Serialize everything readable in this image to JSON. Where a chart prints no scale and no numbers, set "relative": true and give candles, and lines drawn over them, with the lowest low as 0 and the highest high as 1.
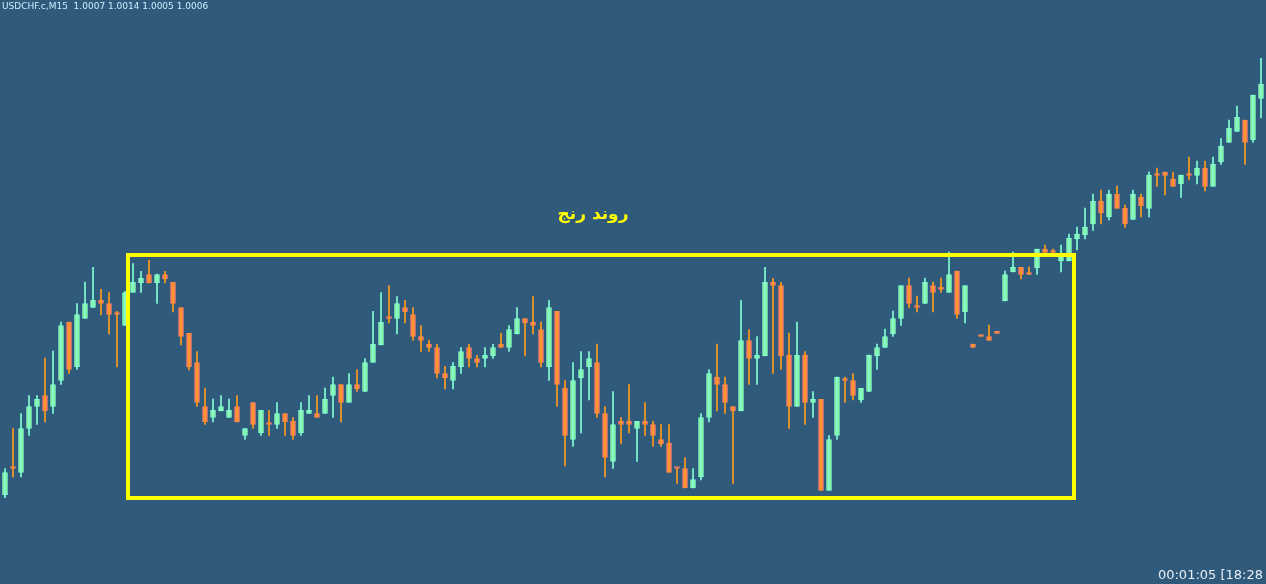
{
  "chart_data": {
    "type": "candlestick",
    "title": "USDCHF.c,M15  1.0007 1.0014 1.0005 1.0006",
    "relative": true,
    "annotations": [
      "روند رنج",
      "00:01:05 [18:28"
    ],
    "categories": [
      null,
      null,
      null,
      null,
      null,
      null,
      null,
      null,
      null,
      null,
      null,
      null,
      null,
      null,
      null,
      null,
      null,
      null,
      null,
      null,
      null,
      null,
      null,
      null,
      null,
      null,
      null,
      null,
      null,
      null,
      null,
      null,
      null,
      null,
      null,
      null,
      null,
      null,
      null,
      null,
      null,
      null,
      null,
      null,
      null,
      null,
      null,
      null,
      null,
      null,
      null,
      null,
      null,
      null,
      null,
      null,
      null,
      null,
      null,
      null,
      null,
      null,
      null,
      null,
      null,
      null,
      null,
      null,
      null,
      null,
      null,
      null,
      null,
      null,
      null,
      null,
      null,
      null,
      null,
      null,
      null,
      null,
      null,
      null,
      null,
      null,
      null,
      null,
      null,
      null,
      null,
      null,
      null,
      null,
      null,
      null,
      null,
      null,
      null,
      null,
      null,
      null,
      null,
      null,
      null,
      null,
      null,
      null,
      null,
      null,
      null,
      null,
      null,
      null,
      null,
      null,
      null,
      null,
      null,
      null,
      null,
      null,
      null,
      null,
      null,
      null,
      null,
      null,
      null,
      null,
      null,
      null,
      null,
      null,
      null,
      null,
      null,
      null,
      null,
      null,
      null,
      null,
      null,
      null,
      null,
      null,
      null,
      null,
      null,
      null,
      null,
      null,
      null,
      null,
      null,
      null,
      null,
      null
    ],
    "ohlc": [
      [
        0.007,
        0.067,
        0,
        0.058
      ],
      [
        0.067,
        0.158,
        0.048,
        0.067
      ],
      [
        0.058,
        0.192,
        0.048,
        0.158
      ],
      [
        0.158,
        0.233,
        0.142,
        0.208
      ],
      [
        0.208,
        0.233,
        0.167,
        0.224
      ],
      [
        0.233,
        0.318,
        0.173,
        0.198
      ],
      [
        0.208,
        0.334,
        0.192,
        0.258
      ],
      [
        0.267,
        0.4,
        0.258,
        0.392
      ],
      [
        0.4,
        0.4,
        0.283,
        0.292
      ],
      [
        0.298,
        0.442,
        0.292,
        0.417
      ],
      [
        0.408,
        0.491,
        0.408,
        0.442
      ],
      [
        0.433,
        0.524,
        0.433,
        0.449
      ],
      [
        0.449,
        0.474,
        0.416,
        0.442
      ],
      [
        0.442,
        0.467,
        0.373,
        0.417
      ],
      [
        0.417,
        0.424,
        0.298,
        0.417
      ],
      [
        0.392,
        0.469,
        0.392,
        0.467
      ],
      [
        0.467,
        0.533,
        0.467,
        0.49
      ],
      [
        0.489,
        0.515,
        0.467,
        0.499
      ],
      [
        0.508,
        0.541,
        0.489,
        0.489
      ],
      [
        0.489,
        0.509,
        0.442,
        0.508
      ],
      [
        0.508,
        0.515,
        0.489,
        0.498
      ],
      [
        0.49,
        0.49,
        0.423,
        0.442
      ],
      [
        0.433,
        0.433,
        0.348,
        0.367
      ],
      [
        0.374,
        0.374,
        0.291,
        0.298
      ],
      [
        0.308,
        0.333,
        0.208,
        0.217
      ],
      [
        0.208,
        0.25,
        0.167,
        0.173
      ],
      [
        0.183,
        0.225,
        0.173,
        0.199
      ],
      [
        0.198,
        0.233,
        0.198,
        0.208
      ],
      [
        0.183,
        0.225,
        0.183,
        0.199
      ],
      [
        0.208,
        0.233,
        0.173,
        0.173
      ],
      [
        0.142,
        0.158,
        0.133,
        0.158
      ],
      [
        0.217,
        0.217,
        0.158,
        0.167
      ],
      [
        0.148,
        0.199,
        0.142,
        0.199
      ],
      [
        0.167,
        0.199,
        0.142,
        0.167
      ],
      [
        0.167,
        0.217,
        0.158,
        0.192
      ],
      [
        0.192,
        0.192,
        0.142,
        0.173
      ],
      [
        0.174,
        0.183,
        0.133,
        0.142
      ],
      [
        0.148,
        0.217,
        0.142,
        0.199
      ],
      [
        0.192,
        0.233,
        0.192,
        0.199
      ],
      [
        0.192,
        0.233,
        0.183,
        0.183
      ],
      [
        0.192,
        0.25,
        0.192,
        0.224
      ],
      [
        0.233,
        0.275,
        0.183,
        0.258
      ],
      [
        0.258,
        0.258,
        0.173,
        0.217
      ],
      [
        0.217,
        0.283,
        0.217,
        0.258
      ],
      [
        0.258,
        0.292,
        0.242,
        0.248
      ],
      [
        0.242,
        0.317,
        0.242,
        0.308
      ],
      [
        0.308,
        0.424,
        0.308,
        0.349
      ],
      [
        0.348,
        0.467,
        0.348,
        0.399
      ],
      [
        0.408,
        0.483,
        0.398,
        0.408
      ],
      [
        0.408,
        0.458,
        0.373,
        0.442
      ],
      [
        0.433,
        0.449,
        0.398,
        0.423
      ],
      [
        0.417,
        0.433,
        0.358,
        0.367
      ],
      [
        0.367,
        0.392,
        0.333,
        0.358
      ],
      [
        0.349,
        0.359,
        0.333,
        0.342
      ],
      [
        0.342,
        0.349,
        0.273,
        0.283
      ],
      [
        0.283,
        0.299,
        0.248,
        0.273
      ],
      [
        0.267,
        0.308,
        0.248,
        0.299
      ],
      [
        0.298,
        0.342,
        0.283,
        0.333
      ],
      [
        0.342,
        0.349,
        0.298,
        0.317
      ],
      [
        0.317,
        0.324,
        0.298,
        0.308
      ],
      [
        0.317,
        0.342,
        0.298,
        0.324
      ],
      [
        0.323,
        0.349,
        0.317,
        0.342
      ],
      [
        0.349,
        0.374,
        0.342,
        0.342
      ],
      [
        0.342,
        0.392,
        0.333,
        0.383
      ],
      [
        0.373,
        0.433,
        0.373,
        0.408
      ],
      [
        0.408,
        0.408,
        0.323,
        0.398
      ],
      [
        0.4,
        0.458,
        0.373,
        0.392
      ],
      [
        0.383,
        0.4,
        0.298,
        0.308
      ],
      [
        0.298,
        0.449,
        0.267,
        0.433
      ],
      [
        0.424,
        0.424,
        0.208,
        0.258
      ],
      [
        0.25,
        0.267,
        0.073,
        0.142
      ],
      [
        0.133,
        0.308,
        0.117,
        0.267
      ],
      [
        0.273,
        0.333,
        0.148,
        0.292
      ],
      [
        0.298,
        0.333,
        0.223,
        0.317
      ],
      [
        0.308,
        0.35,
        0.183,
        0.192
      ],
      [
        0.192,
        0.208,
        0.048,
        0.092
      ],
      [
        0.083,
        0.242,
        0.067,
        0.167
      ],
      [
        0.174,
        0.183,
        0.123,
        0.167
      ],
      [
        0.174,
        0.258,
        0.148,
        0.167
      ],
      [
        0.158,
        0.174,
        0.083,
        0.174
      ],
      [
        0.174,
        0.217,
        0.142,
        0.167
      ],
      [
        0.167,
        0.174,
        0.117,
        0.142
      ],
      [
        0.133,
        0.167,
        0.117,
        0.123
      ],
      [
        0.124,
        0.167,
        0.058,
        0.058
      ],
      [
        0.067,
        0.067,
        0.033,
        0.067
      ],
      [
        0.067,
        0.092,
        0.023,
        0.023
      ],
      [
        0.023,
        0.067,
        0.023,
        0.042
      ],
      [
        0.048,
        0.192,
        0.041,
        0.183
      ],
      [
        0.183,
        0.292,
        0.173,
        0.283
      ],
      [
        0.275,
        0.35,
        0.198,
        0.258
      ],
      [
        0.258,
        0.275,
        0.192,
        0.217
      ],
      [
        0.208,
        0.208,
        0.033,
        0.198
      ],
      [
        0.198,
        0.449,
        0.198,
        0.358
      ],
      [
        0.358,
        0.383,
        0.258,
        0.317
      ],
      [
        0.317,
        0.367,
        0.258,
        0.324
      ],
      [
        0.323,
        0.524,
        0.323,
        0.49
      ],
      [
        0.49,
        0.499,
        0.283,
        0.483
      ],
      [
        0.483,
        0.49,
        0.292,
        0.323
      ],
      [
        0.324,
        0.375,
        0.158,
        0.208
      ],
      [
        0.208,
        0.4,
        0.208,
        0.324
      ],
      [
        0.324,
        0.333,
        0.167,
        0.217
      ],
      [
        0.217,
        0.242,
        0.183,
        0.224
      ],
      [
        0.224,
        0.224,
        0.017,
        0.017
      ],
      [
        0.017,
        0.142,
        0.017,
        0.133
      ],
      [
        0.142,
        0.275,
        0.133,
        0.275
      ],
      [
        0.267,
        0.275,
        0.217,
        0.267
      ],
      [
        0.267,
        0.283,
        0.223,
        0.233
      ],
      [
        0.223,
        0.249,
        0.217,
        0.249
      ],
      [
        0.242,
        0.325,
        0.242,
        0.325
      ],
      [
        0.323,
        0.35,
        0.292,
        0.342
      ],
      [
        0.342,
        0.384,
        0.342,
        0.367
      ],
      [
        0.373,
        0.425,
        0.367,
        0.408
      ],
      [
        0.408,
        0.483,
        0.392,
        0.483
      ],
      [
        0.483,
        0.5,
        0.433,
        0.442
      ],
      [
        0.433,
        0.459,
        0.423,
        0.433
      ],
      [
        0.442,
        0.5,
        0.442,
        0.49
      ],
      [
        0.483,
        0.491,
        0.423,
        0.467
      ],
      [
        0.474,
        0.5,
        0.467,
        0.474
      ],
      [
        0.467,
        0.559,
        0.467,
        0.508
      ],
      [
        0.516,
        0.516,
        0.408,
        0.417
      ],
      [
        0.423,
        0.483,
        0.398,
        0.483
      ],
      [
        0.35,
        0.35,
        0.342,
        0.342
      ],
      [
        0.367,
        0.367,
        0.367,
        0.367
      ],
      [
        0.367,
        0.393,
        0.358,
        0.358
      ],
      [
        0.374,
        0.374,
        0.374,
        0.374
      ],
      [
        0.448,
        0.516,
        0.448,
        0.508
      ],
      [
        0.514,
        0.559,
        0.514,
        0.524
      ],
      [
        0.524,
        0.524,
        0.498,
        0.508
      ],
      [
        0.508,
        0.525,
        0.508,
        0.508
      ],
      [
        0.523,
        0.566,
        0.508,
        0.566
      ],
      [
        0.566,
        0.575,
        0.558,
        0.558
      ],
      [
        0.558,
        0.566,
        0.556,
        0.558
      ],
      [
        0.539,
        0.575,
        0.514,
        0.556
      ],
      [
        0.539,
        0.6,
        0.539,
        0.59
      ],
      [
        0.589,
        0.616,
        0.564,
        0.6
      ],
      [
        0.598,
        0.659,
        0.589,
        0.616
      ],
      [
        0.623,
        0.691,
        0.608,
        0.675
      ],
      [
        0.675,
        0.7,
        0.623,
        0.648
      ],
      [
        0.639,
        0.7,
        0.632,
        0.691
      ],
      [
        0.691,
        0.709,
        0.658,
        0.658
      ],
      [
        0.659,
        0.666,
        0.615,
        0.623
      ],
      [
        0.633,
        0.7,
        0.633,
        0.691
      ],
      [
        0.684,
        0.691,
        0.639,
        0.664
      ],
      [
        0.658,
        0.741,
        0.639,
        0.734
      ],
      [
        0.733,
        0.75,
        0.708,
        0.733
      ],
      [
        0.741,
        0.741,
        0.689,
        0.733
      ],
      [
        0.725,
        0.741,
        0.708,
        0.708
      ],
      [
        0.714,
        0.734,
        0.683,
        0.734
      ],
      [
        0.733,
        0.775,
        0.723,
        0.733
      ],
      [
        0.733,
        0.766,
        0.714,
        0.75
      ],
      [
        0.75,
        0.766,
        0.698,
        0.708
      ],
      [
        0.708,
        0.775,
        0.708,
        0.759
      ],
      [
        0.764,
        0.817,
        0.758,
        0.8
      ],
      [
        0.808,
        0.859,
        0.808,
        0.841
      ],
      [
        0.833,
        0.891,
        0.833,
        0.866
      ],
      [
        0.859,
        0.859,
        0.758,
        0.808
      ],
      [
        0.814,
        0.916,
        0.808,
        0.916
      ],
      [
        0.908,
        1,
        0.864,
        0.941
      ]
    ]
  }
}
